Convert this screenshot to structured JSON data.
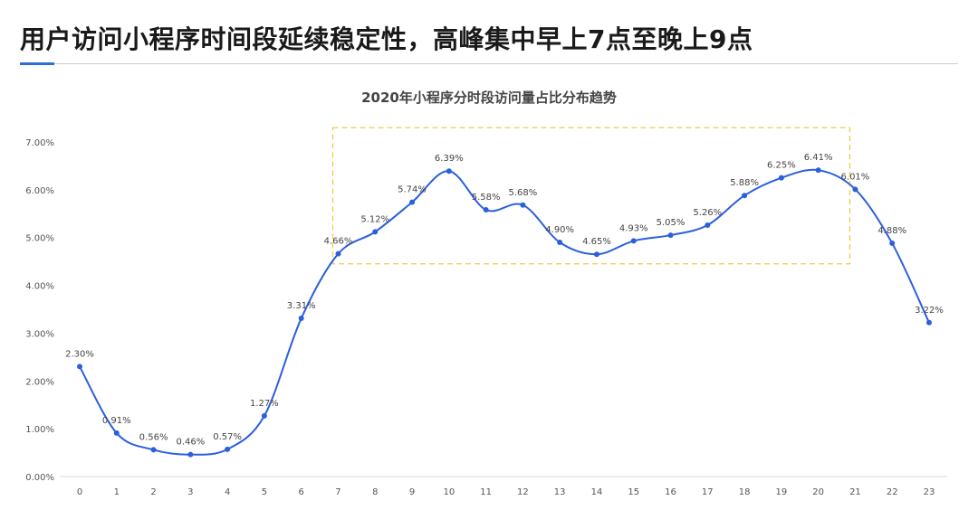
{
  "slide": {
    "title": "用户访问小程序时间段延续稳定性，高峰集中早上7点至晚上9点"
  },
  "colors": {
    "line": "#2b5fdc",
    "highlight_box": "#f2c94c",
    "accent": "#2c6fd6"
  },
  "chart_data": {
    "type": "line",
    "title": "2020年小程序分时段访问量占比分布趋势",
    "xlabel": "",
    "ylabel": "",
    "x": [
      0,
      1,
      2,
      3,
      4,
      5,
      6,
      7,
      8,
      9,
      10,
      11,
      12,
      13,
      14,
      15,
      16,
      17,
      18,
      19,
      20,
      21,
      22,
      23
    ],
    "values": [
      2.3,
      0.91,
      0.56,
      0.46,
      0.57,
      1.27,
      3.31,
      4.66,
      5.12,
      5.74,
      6.39,
      5.58,
      5.68,
      4.9,
      4.65,
      4.93,
      5.05,
      5.26,
      5.88,
      6.25,
      6.41,
      6.01,
      4.88,
      3.22
    ],
    "data_labels": [
      "2.30%",
      "0.91%",
      "0.56%",
      "0.46%",
      "0.57%",
      "1.27%",
      "3.31%",
      "4.66%",
      "5.12%",
      "5.74%",
      "6.39%",
      "5.58%",
      "5.68%",
      "4.90%",
      "4.65%",
      "4.93%",
      "5.05%",
      "5.26%",
      "5.88%",
      "6.25%",
      "6.41%",
      "6.01%",
      "4.88%",
      "3.22%"
    ],
    "ylim": [
      0,
      7
    ],
    "yticks": [
      0,
      1,
      2,
      3,
      4,
      5,
      6,
      7
    ],
    "ytick_labels": [
      "0.00%",
      "1.00%",
      "2.00%",
      "3.00%",
      "4.00%",
      "5.00%",
      "6.00%",
      "7.00%"
    ],
    "grid": false,
    "legend": "none",
    "highlight_range": {
      "x_from": 7,
      "x_to": 21,
      "y_from": 4.45,
      "y_to": 7.3
    }
  }
}
